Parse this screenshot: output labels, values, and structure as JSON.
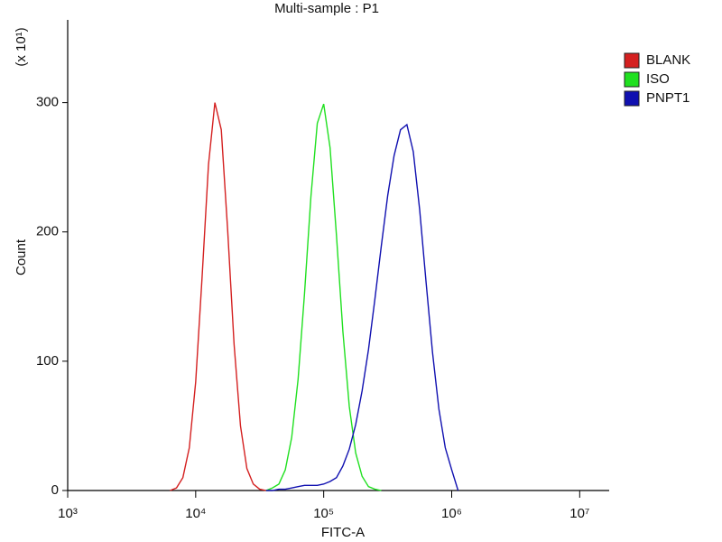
{
  "chart_data": {
    "type": "line",
    "title": "Multi-sample : P1",
    "xlabel": "FITC-A",
    "ylabel": "Count",
    "ylabel_multiplier": "(x 10¹)",
    "xscale": "log",
    "xlim": [
      1000,
      17000000
    ],
    "xticks": [
      {
        "value": 1000,
        "label": "10³"
      },
      {
        "value": 10000,
        "label": "10⁴"
      },
      {
        "value": 100000,
        "label": "10⁵"
      },
      {
        "value": 1000000,
        "label": "10⁶"
      },
      {
        "value": 10000000,
        "label": "10⁷"
      }
    ],
    "ylim": [
      0,
      364
    ],
    "yticks": [
      0,
      100,
      200,
      300
    ],
    "grid": false,
    "legend": "right",
    "x": [
      6310,
      7079,
      7943,
      8913,
      10000,
      11220,
      12589,
      14125,
      15849,
      17783,
      19953,
      22387,
      25119,
      28184,
      31623,
      35481,
      39811,
      44668,
      50119,
      56234,
      63096,
      70795,
      79433,
      89125,
      100000,
      112202,
      125893,
      141254,
      158489,
      177828,
      199526,
      223872,
      251189,
      281838,
      316228,
      354813,
      398107,
      446684,
      501187,
      562341,
      630957,
      707946,
      794328,
      891251,
      1000000,
      1122018
    ],
    "series": [
      {
        "name": "BLANK",
        "color": "#d42020",
        "values": [
          0,
          2,
          10,
          33,
          84,
          165,
          252,
          300,
          279,
          201,
          113,
          50,
          17,
          5,
          1,
          0,
          null,
          null,
          null,
          null,
          null,
          null,
          null,
          null,
          null,
          null,
          null,
          null,
          null,
          null,
          null,
          null,
          null,
          null,
          null,
          null,
          null,
          null,
          null,
          null,
          null,
          null,
          null,
          null,
          null,
          null
        ]
      },
      {
        "name": "ISO",
        "color": "#20e020",
        "values": [
          null,
          null,
          null,
          null,
          null,
          null,
          null,
          null,
          null,
          null,
          null,
          null,
          null,
          null,
          null,
          0,
          2,
          5,
          16,
          41,
          86,
          152,
          227,
          284,
          299,
          265,
          197,
          123,
          65,
          29,
          11,
          3,
          1,
          0,
          null,
          null,
          null,
          null,
          null,
          null,
          null,
          null,
          null,
          null,
          null,
          null
        ]
      },
      {
        "name": "PNPT1",
        "color": "#1010b0",
        "values": [
          null,
          null,
          null,
          null,
          null,
          null,
          null,
          null,
          null,
          null,
          null,
          null,
          null,
          null,
          null,
          0,
          0,
          1,
          1,
          2,
          3,
          4,
          4,
          4,
          5,
          7,
          10,
          19,
          32,
          51,
          77,
          109,
          148,
          189,
          228,
          259,
          279,
          283,
          262,
          217,
          161,
          107,
          63,
          33,
          16,
          0
        ]
      }
    ]
  }
}
